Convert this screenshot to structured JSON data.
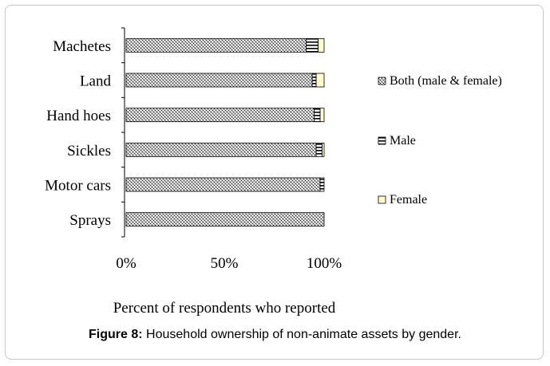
{
  "chart_data": {
    "type": "bar",
    "orientation": "horizontal",
    "stacked": "percent",
    "categories": [
      "Machetes",
      "Land",
      "Hand hoes",
      "Sickles",
      "Motor cars",
      "Sprays"
    ],
    "series": [
      {
        "name": "Both (male & female)",
        "values": [
          91,
          94,
          95,
          96,
          98,
          100
        ],
        "pattern": "crosshatch"
      },
      {
        "name": "Male",
        "values": [
          6,
          2,
          3,
          3,
          2,
          0
        ],
        "pattern": "horizontal-lines"
      },
      {
        "name": "Female",
        "values": [
          3,
          4,
          2,
          1,
          0,
          0
        ],
        "pattern": "solid",
        "color": "#ffffcc"
      }
    ],
    "xticks": [
      "0%",
      "50%",
      "100%"
    ],
    "xlim": [
      0,
      100
    ],
    "xlabel": "Percent of respondents who reported",
    "ylabel": "",
    "legend_position": "right",
    "grid": false
  },
  "caption": {
    "label": "Figure 8:",
    "text": " Household ownership of non-animate assets by gender."
  }
}
